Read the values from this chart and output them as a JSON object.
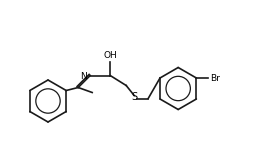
{
  "bg_color": "#ffffff",
  "bond_color": "#1a1a1a",
  "figsize": [
    2.73,
    1.53
  ],
  "dpi": 100,
  "atoms": {
    "O": {
      "label": "O",
      "color": "#000000"
    },
    "N": {
      "label": "N",
      "color": "#000000"
    },
    "S": {
      "label": "S",
      "color": "#000000"
    },
    "Br": {
      "label": "Br",
      "color": "#000000"
    },
    "H": {
      "label": "H",
      "color": "#000000"
    }
  },
  "lw": 1.2
}
